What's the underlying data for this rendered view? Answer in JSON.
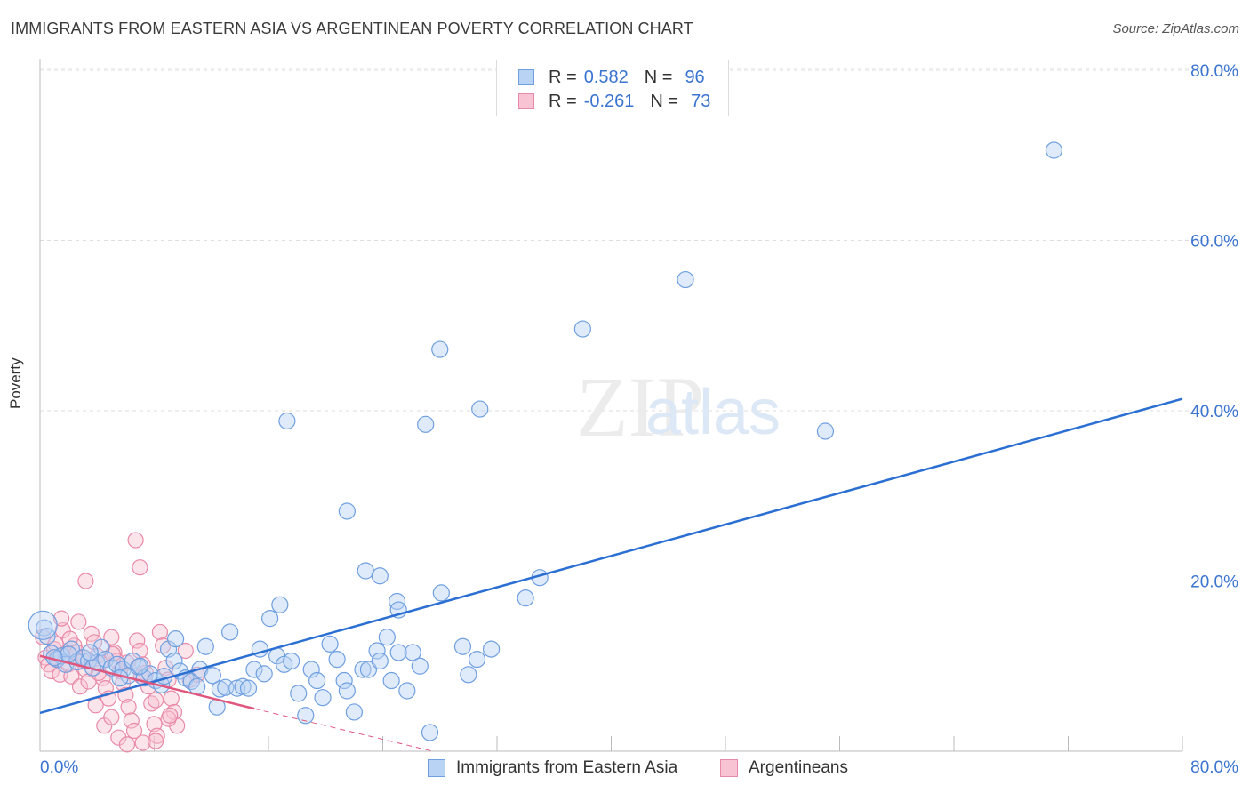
{
  "header": {
    "title": "IMMIGRANTS FROM EASTERN ASIA VS ARGENTINEAN POVERTY CORRELATION CHART",
    "source": "Source: ZipAtlas.com"
  },
  "legend": {
    "r_label": "R =",
    "n_label": "N =",
    "series": [
      {
        "r": "0.582",
        "n": "96",
        "fill": "#b9d3f5",
        "stroke": "#6f9fe0"
      },
      {
        "r": "-0.261",
        "n": "73",
        "fill": "#f8c3d3",
        "stroke": "#e88aa8"
      }
    ]
  },
  "watermark": {
    "zip": "ZIP",
    "atlas": "atlas"
  },
  "colors": {
    "blue_fill": "#b9d3f5",
    "blue_stroke": "#6f9fe0",
    "blue_line": "#2a6fd1",
    "pink_fill": "#f8c3d3",
    "pink_stroke": "#e88aa8",
    "pink_line": "#e0577e",
    "grid": "#dddddd",
    "tick_label": "#3a74d0"
  },
  "chart_data": {
    "type": "scatter",
    "title": "IMMIGRANTS FROM EASTERN ASIA VS ARGENTINEAN POVERTY CORRELATION CHART",
    "xlabel": "",
    "ylabel": "Poverty",
    "xlim": [
      0,
      80
    ],
    "ylim": [
      0,
      80
    ],
    "x_tick_labels": [
      "0.0%",
      "80.0%"
    ],
    "y_ticks": [
      20,
      40,
      60,
      80
    ],
    "y_tick_labels": [
      "20.0%",
      "40.0%",
      "60.0%",
      "80.0%"
    ],
    "series": [
      {
        "name": "Immigrants from Eastern Asia",
        "color": "#6f9fe0",
        "points": [
          [
            0.3,
            14.5
          ],
          [
            0.5,
            13.5
          ],
          [
            0.8,
            11.5
          ],
          [
            1.2,
            10.8
          ],
          [
            1.5,
            11.2
          ],
          [
            1.8,
            10.2
          ],
          [
            2.2,
            12.0
          ],
          [
            2.6,
            10.5
          ],
          [
            3.0,
            11.0
          ],
          [
            3.4,
            10.6
          ],
          [
            3.7,
            9.8
          ],
          [
            4.0,
            10.4
          ],
          [
            4.3,
            12.2
          ],
          [
            4.6,
            10.8
          ],
          [
            5.0,
            9.8
          ],
          [
            5.4,
            10.2
          ],
          [
            5.8,
            9.6
          ],
          [
            6.2,
            8.9
          ],
          [
            6.5,
            10.6
          ],
          [
            6.9,
            9.9
          ],
          [
            7.3,
            8.6
          ],
          [
            7.7,
            9.1
          ],
          [
            8.1,
            8.3
          ],
          [
            8.5,
            7.8
          ],
          [
            9.0,
            12.0
          ],
          [
            9.4,
            10.6
          ],
          [
            9.8,
            9.4
          ],
          [
            10.2,
            8.6
          ],
          [
            10.6,
            8.2
          ],
          [
            11.2,
            9.6
          ],
          [
            11.6,
            12.3
          ],
          [
            12.1,
            8.9
          ],
          [
            12.6,
            7.3
          ],
          [
            13.0,
            7.5
          ],
          [
            13.3,
            14.0
          ],
          [
            13.8,
            7.4
          ],
          [
            14.2,
            7.6
          ],
          [
            14.6,
            7.4
          ],
          [
            15.0,
            9.6
          ],
          [
            15.4,
            12.0
          ],
          [
            15.7,
            9.1
          ],
          [
            16.1,
            15.6
          ],
          [
            16.6,
            11.2
          ],
          [
            16.8,
            17.2
          ],
          [
            17.1,
            10.2
          ],
          [
            17.6,
            10.6
          ],
          [
            18.1,
            6.8
          ],
          [
            18.6,
            4.2
          ],
          [
            19.0,
            9.6
          ],
          [
            19.4,
            8.3
          ],
          [
            19.8,
            6.3
          ],
          [
            20.3,
            12.6
          ],
          [
            20.8,
            10.8
          ],
          [
            21.3,
            8.3
          ],
          [
            21.5,
            7.1
          ],
          [
            22.0,
            4.6
          ],
          [
            22.6,
            9.6
          ],
          [
            23.0,
            9.6
          ],
          [
            23.6,
            11.8
          ],
          [
            23.8,
            10.6
          ],
          [
            24.3,
            13.4
          ],
          [
            24.6,
            8.3
          ],
          [
            25.1,
            11.6
          ],
          [
            25.7,
            7.1
          ],
          [
            26.1,
            11.6
          ],
          [
            26.6,
            10.0
          ],
          [
            27.3,
            2.2
          ],
          [
            28.1,
            18.6
          ],
          [
            29.6,
            12.3
          ],
          [
            30.0,
            9.0
          ],
          [
            30.6,
            10.8
          ],
          [
            31.6,
            12.0
          ],
          [
            34.0,
            18.0
          ],
          [
            35.0,
            20.4
          ],
          [
            17.3,
            38.8
          ],
          [
            21.5,
            28.2
          ],
          [
            22.8,
            21.2
          ],
          [
            23.8,
            20.6
          ],
          [
            25.0,
            17.6
          ],
          [
            25.1,
            16.6
          ],
          [
            27.0,
            38.4
          ],
          [
            28.0,
            47.2
          ],
          [
            30.8,
            40.2
          ],
          [
            38.0,
            49.6
          ],
          [
            45.2,
            55.4
          ],
          [
            55.0,
            37.6
          ],
          [
            71.0,
            70.6
          ],
          [
            2.0,
            11.4
          ],
          [
            3.5,
            11.6
          ],
          [
            5.6,
            8.6
          ],
          [
            7.0,
            10.0
          ],
          [
            8.7,
            8.8
          ],
          [
            9.5,
            13.2
          ],
          [
            11.0,
            7.6
          ],
          [
            12.4,
            5.2
          ],
          [
            1.0,
            11.0
          ]
        ],
        "big_points": [
          [
            0.2,
            14.8
          ]
        ],
        "trendline": {
          "x": [
            0,
            80
          ],
          "y": [
            4.5,
            41.4
          ]
        }
      },
      {
        "name": "Argentineans",
        "color": "#e88aa8",
        "points": [
          [
            0.2,
            13.4
          ],
          [
            0.4,
            11.0
          ],
          [
            0.6,
            10.2
          ],
          [
            0.8,
            9.4
          ],
          [
            1.0,
            12.0
          ],
          [
            1.2,
            10.8
          ],
          [
            1.4,
            9.0
          ],
          [
            1.6,
            14.2
          ],
          [
            1.8,
            11.4
          ],
          [
            2.0,
            10.2
          ],
          [
            2.2,
            8.8
          ],
          [
            2.4,
            12.4
          ],
          [
            2.6,
            11.6
          ],
          [
            2.8,
            7.6
          ],
          [
            3.0,
            10.6
          ],
          [
            3.2,
            9.6
          ],
          [
            3.4,
            8.2
          ],
          [
            3.6,
            13.8
          ],
          [
            3.8,
            12.8
          ],
          [
            4.0,
            11.2
          ],
          [
            4.2,
            10.4
          ],
          [
            4.4,
            8.6
          ],
          [
            4.6,
            7.4
          ],
          [
            4.8,
            6.2
          ],
          [
            5.0,
            13.4
          ],
          [
            5.2,
            11.6
          ],
          [
            5.4,
            10.6
          ],
          [
            5.6,
            9.4
          ],
          [
            5.8,
            8.0
          ],
          [
            6.0,
            6.6
          ],
          [
            6.2,
            5.2
          ],
          [
            6.4,
            3.6
          ],
          [
            6.6,
            2.4
          ],
          [
            6.8,
            13.0
          ],
          [
            7.0,
            11.8
          ],
          [
            7.2,
            10.2
          ],
          [
            7.4,
            9.2
          ],
          [
            7.6,
            7.6
          ],
          [
            7.8,
            5.6
          ],
          [
            8.0,
            3.2
          ],
          [
            8.2,
            1.8
          ],
          [
            8.4,
            14.0
          ],
          [
            8.6,
            12.4
          ],
          [
            8.8,
            9.8
          ],
          [
            9.0,
            8.4
          ],
          [
            9.2,
            6.2
          ],
          [
            9.4,
            4.6
          ],
          [
            9.6,
            3.0
          ],
          [
            3.2,
            20.0
          ],
          [
            6.7,
            24.8
          ],
          [
            7.0,
            21.6
          ],
          [
            1.5,
            15.6
          ],
          [
            2.7,
            15.2
          ],
          [
            3.9,
            5.4
          ],
          [
            4.5,
            3.0
          ],
          [
            5.0,
            4.0
          ],
          [
            5.5,
            1.6
          ],
          [
            6.1,
            0.8
          ],
          [
            7.2,
            1.0
          ],
          [
            8.1,
            1.2
          ],
          [
            9.0,
            3.8
          ],
          [
            10.5,
            8.4
          ],
          [
            1.1,
            12.6
          ],
          [
            2.1,
            13.2
          ],
          [
            3.1,
            11.0
          ],
          [
            4.1,
            9.2
          ],
          [
            5.1,
            11.4
          ],
          [
            6.1,
            10.4
          ],
          [
            7.1,
            8.8
          ],
          [
            8.1,
            6.0
          ],
          [
            9.1,
            4.2
          ],
          [
            10.2,
            11.8
          ],
          [
            11.0,
            9.0
          ]
        ],
        "trendline_solid": {
          "x": [
            0,
            15
          ],
          "y": [
            11.2,
            5.0
          ]
        },
        "trendline_dashed": {
          "x": [
            15,
            27.5
          ],
          "y": [
            5.0,
            0
          ]
        }
      }
    ]
  },
  "bottom_legend": {
    "items": [
      "Immigrants from Eastern Asia",
      "Argentineans"
    ]
  }
}
